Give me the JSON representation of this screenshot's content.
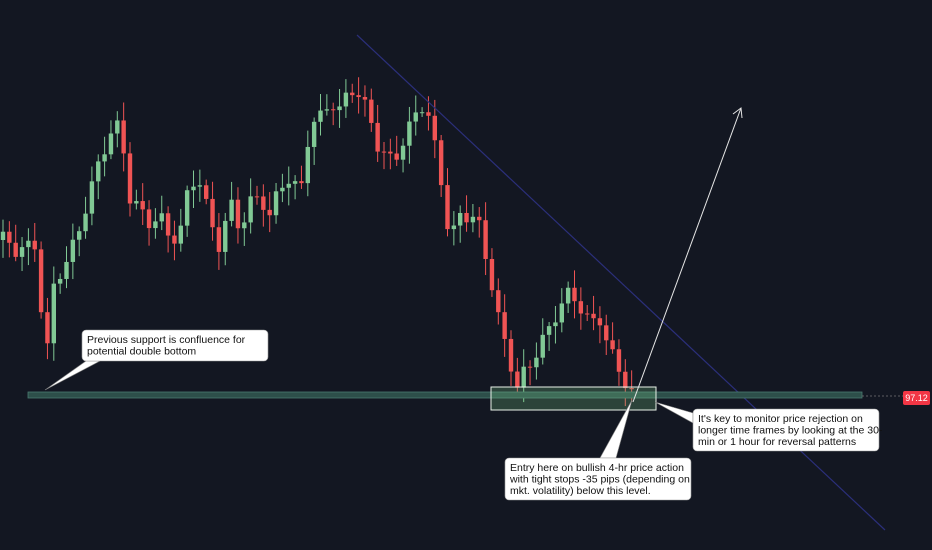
{
  "price_label": "97.12",
  "annotations": [
    {
      "lines": [
        "Previous support is confluence for",
        "potential double bottom"
      ]
    },
    {
      "lines": [
        "It's key to monitor price rejection on",
        "longer time frames by looking at the 30-",
        "min or 1 hour for reversal patterns"
      ]
    },
    {
      "lines": [
        "Entry here on bullish 4-hr price action",
        "with tight stops -35 pips (depending on",
        "mkt. volatility) below this level."
      ]
    }
  ]
}
